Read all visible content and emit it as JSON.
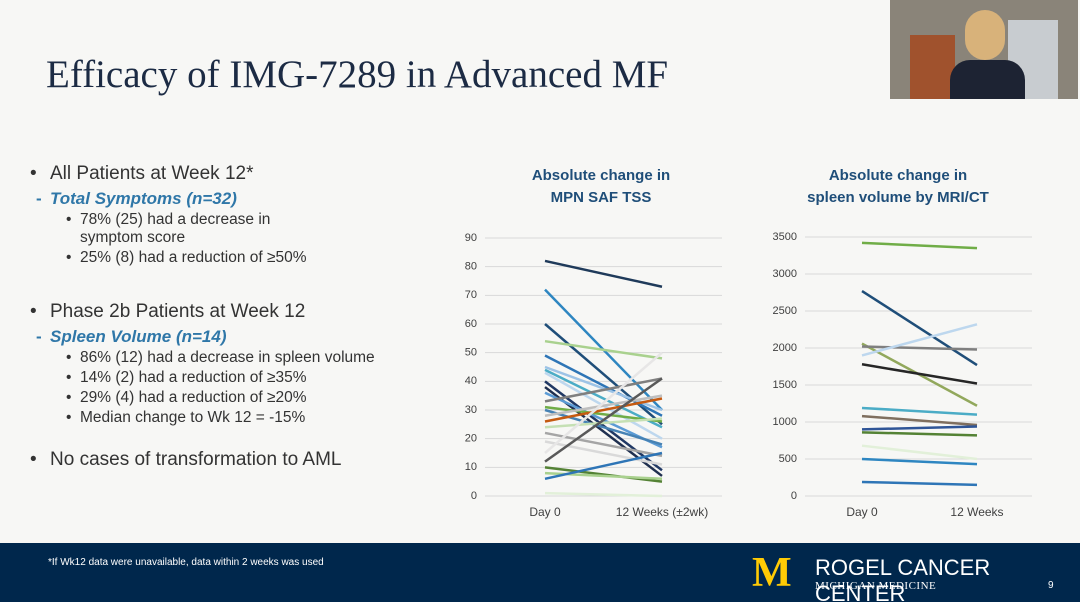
{
  "title": "Efficacy of IMG-7289 in Advanced MF",
  "bullets": [
    {
      "text": "All Patients at Week 12*",
      "sub": "Total Symptoms (n=32)",
      "items": [
        "78% (25) had a decrease in symptom score",
        "25% (8) had a reduction of ≥50%"
      ]
    },
    {
      "text": "Phase 2b Patients at Week 12",
      "sub": "Spleen Volume (n=14)",
      "items": [
        "86% (12) had a decrease in spleen volume",
        "14% (2) had a reduction of ≥35%",
        "29% (4) had a reduction of ≥20%",
        "Median change to Wk 12 = -15%"
      ]
    },
    {
      "text": "No cases of transformation to AML"
    }
  ],
  "chart_data": [
    {
      "type": "line",
      "title": [
        "Absolute change in",
        "MPN SAF TSS"
      ],
      "categories": [
        "Day 0",
        "12 Weeks (±2wk)"
      ],
      "ylim": [
        0,
        90
      ],
      "yticks": [
        0,
        10,
        20,
        30,
        40,
        50,
        60,
        70,
        80,
        90
      ],
      "grid": true,
      "series": [
        {
          "color": "#1f3a5a",
          "values": [
            82,
            73
          ]
        },
        {
          "color": "#2e86c1",
          "values": [
            72,
            30
          ]
        },
        {
          "color": "#1f4e79",
          "values": [
            60,
            25
          ]
        },
        {
          "color": "#a9d18e",
          "values": [
            54,
            48
          ]
        },
        {
          "color": "#2e75b6",
          "values": [
            49,
            28
          ]
        },
        {
          "color": "#9dc3e6",
          "values": [
            45,
            30
          ]
        },
        {
          "color": "#4bacc6",
          "values": [
            44,
            24
          ]
        },
        {
          "color": "#bdd7ee",
          "values": [
            43,
            20
          ]
        },
        {
          "color": "#203864",
          "values": [
            40,
            9
          ]
        },
        {
          "color": "#1f2f4f",
          "values": [
            38,
            7
          ]
        },
        {
          "color": "#5b9bd5",
          "values": [
            36,
            17
          ]
        },
        {
          "color": "#7f7f7f",
          "values": [
            33,
            41
          ]
        },
        {
          "color": "#70ad47",
          "values": [
            31,
            26
          ]
        },
        {
          "color": "#4682b4",
          "values": [
            30,
            18
          ]
        },
        {
          "color": "#bfbfbf",
          "values": [
            28,
            35
          ]
        },
        {
          "color": "#c55a11",
          "values": [
            26,
            34
          ]
        },
        {
          "color": "#c5e0b4",
          "values": [
            24,
            27
          ]
        },
        {
          "color": "#a5a5a5",
          "values": [
            22,
            14
          ]
        },
        {
          "color": "#d9d9d9",
          "values": [
            19,
            11
          ]
        },
        {
          "color": "#e7e6e6",
          "values": [
            15,
            50
          ]
        },
        {
          "color": "#595959",
          "values": [
            12,
            41
          ]
        },
        {
          "color": "#548235",
          "values": [
            10,
            5
          ]
        },
        {
          "color": "#a9d18e",
          "values": [
            8,
            6
          ]
        },
        {
          "color": "#2e75b6",
          "values": [
            6,
            15
          ]
        },
        {
          "color": "#e2f0d9",
          "values": [
            1,
            0
          ]
        }
      ]
    },
    {
      "type": "line",
      "title": [
        "Absolute change in",
        "spleen volume by MRI/CT"
      ],
      "categories": [
        "Day 0",
        "12 Weeks"
      ],
      "ylim": [
        0,
        3500
      ],
      "yticks": [
        0,
        500,
        1000,
        1500,
        2000,
        2500,
        3000,
        3500
      ],
      "grid": true,
      "series": [
        {
          "color": "#70ad47",
          "values": [
            3420,
            3350
          ]
        },
        {
          "color": "#1f4e79",
          "values": [
            2770,
            1770
          ]
        },
        {
          "color": "#92a85c",
          "values": [
            2060,
            1220
          ]
        },
        {
          "color": "#7f7f7f",
          "values": [
            2020,
            1980
          ]
        },
        {
          "color": "#bdd7ee",
          "values": [
            1900,
            2320
          ]
        },
        {
          "color": "#262626",
          "values": [
            1780,
            1520
          ]
        },
        {
          "color": "#4bacc6",
          "values": [
            1190,
            1100
          ]
        },
        {
          "color": "#7f6f5f",
          "values": [
            1080,
            960
          ]
        },
        {
          "color": "#2f5597",
          "values": [
            900,
            940
          ]
        },
        {
          "color": "#548235",
          "values": [
            860,
            820
          ]
        },
        {
          "color": "#e2f0d9",
          "values": [
            680,
            500
          ]
        },
        {
          "color": "#2e86c1",
          "values": [
            500,
            430
          ]
        },
        {
          "color": "#2e75b6",
          "values": [
            190,
            150
          ]
        }
      ]
    }
  ],
  "footer": {
    "note": "*If Wk12 data were unavailable, data within 2 weeks was used",
    "logo": "M",
    "org": "ROGEL CANCER CENTER",
    "sub": "MICHIGAN MEDICINE",
    "page": "9"
  }
}
